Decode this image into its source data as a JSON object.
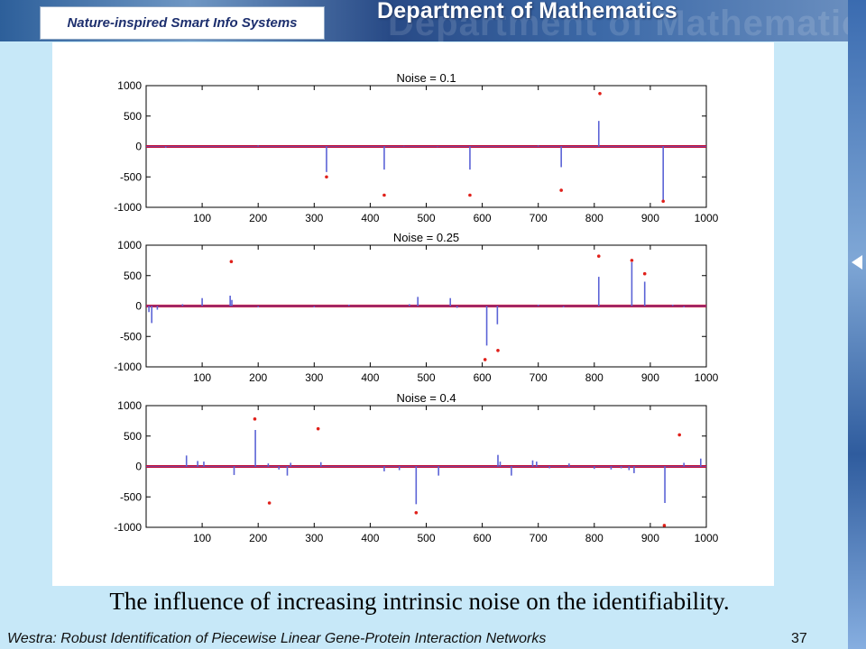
{
  "header": {
    "brand": "Nature-inspired Smart Info Systems",
    "department": "Department of Mathematics"
  },
  "caption": "The influence of increasing intrinsic noise on the identifiability.",
  "footer": {
    "text": "Westra: Robust Identification of Piecewise Linear Gene-Protein Interaction Networks",
    "page": "37"
  },
  "colors": {
    "stem": "#5b63d6",
    "dot": "#e0201a",
    "baseline": "#c0103a"
  },
  "chart_data": [
    {
      "type": "scatter",
      "title": "Noise = 0.1",
      "xlim": [
        0,
        1000
      ],
      "ylim": [
        -1000,
        1000
      ],
      "xticks": [
        100,
        200,
        300,
        400,
        500,
        600,
        700,
        800,
        900,
        1000
      ],
      "yticks": [
        1000,
        500,
        0,
        -500,
        -1000
      ],
      "estimates": [
        [
          322,
          -420
        ],
        [
          425,
          -380
        ],
        [
          578,
          -380
        ],
        [
          741,
          -340
        ],
        [
          808,
          420
        ],
        [
          923,
          -900
        ],
        [
          35,
          -20
        ],
        [
          200,
          15
        ],
        [
          460,
          10
        ],
        [
          520,
          -10
        ],
        [
          700,
          15
        ]
      ],
      "true_points": [
        [
          322,
          -500
        ],
        [
          425,
          -800
        ],
        [
          578,
          -800
        ],
        [
          741,
          -720
        ],
        [
          810,
          870
        ],
        [
          923,
          -900
        ]
      ]
    },
    {
      "type": "scatter",
      "title": "Noise = 0.25",
      "xlim": [
        0,
        1000
      ],
      "ylim": [
        -1000,
        1000
      ],
      "xticks": [
        100,
        200,
        300,
        400,
        500,
        600,
        700,
        800,
        900,
        1000
      ],
      "yticks": [
        1000,
        500,
        0,
        -500,
        -1000
      ],
      "estimates": [
        [
          5,
          -100
        ],
        [
          10,
          -280
        ],
        [
          20,
          -60
        ],
        [
          65,
          30
        ],
        [
          100,
          130
        ],
        [
          150,
          170
        ],
        [
          153,
          100
        ],
        [
          200,
          -20
        ],
        [
          300,
          -20
        ],
        [
          362,
          20
        ],
        [
          470,
          30
        ],
        [
          485,
          150
        ],
        [
          543,
          130
        ],
        [
          555,
          -30
        ],
        [
          608,
          -650
        ],
        [
          627,
          -300
        ],
        [
          700,
          20
        ],
        [
          745,
          -20
        ],
        [
          808,
          480
        ],
        [
          867,
          720
        ],
        [
          890,
          400
        ],
        [
          940,
          20
        ],
        [
          960,
          -20
        ]
      ],
      "true_points": [
        [
          152,
          730
        ],
        [
          605,
          -880
        ],
        [
          628,
          -730
        ],
        [
          808,
          820
        ],
        [
          867,
          750
        ],
        [
          890,
          530
        ]
      ]
    },
    {
      "type": "scatter",
      "title": "Noise = 0.4",
      "xlim": [
        0,
        1000
      ],
      "ylim": [
        -1000,
        1000
      ],
      "xticks": [
        100,
        200,
        300,
        400,
        500,
        600,
        700,
        800,
        900,
        1000
      ],
      "yticks": [
        1000,
        500,
        0,
        -500,
        -1000
      ],
      "estimates": [
        [
          72,
          180
        ],
        [
          92,
          90
        ],
        [
          103,
          80
        ],
        [
          157,
          -140
        ],
        [
          195,
          600
        ],
        [
          218,
          50
        ],
        [
          237,
          -50
        ],
        [
          252,
          -150
        ],
        [
          258,
          60
        ],
        [
          312,
          70
        ],
        [
          425,
          -80
        ],
        [
          452,
          -60
        ],
        [
          482,
          -620
        ],
        [
          522,
          -150
        ],
        [
          628,
          190
        ],
        [
          632,
          80
        ],
        [
          652,
          -150
        ],
        [
          690,
          100
        ],
        [
          697,
          80
        ],
        [
          720,
          -30
        ],
        [
          755,
          50
        ],
        [
          800,
          -40
        ],
        [
          830,
          -50
        ],
        [
          848,
          -30
        ],
        [
          862,
          -60
        ],
        [
          871,
          -110
        ],
        [
          926,
          -600
        ],
        [
          960,
          60
        ],
        [
          990,
          130
        ]
      ],
      "true_points": [
        [
          194,
          780
        ],
        [
          220,
          -600
        ],
        [
          307,
          620
        ],
        [
          482,
          -760
        ],
        [
          925,
          -970
        ],
        [
          952,
          520
        ]
      ]
    }
  ]
}
